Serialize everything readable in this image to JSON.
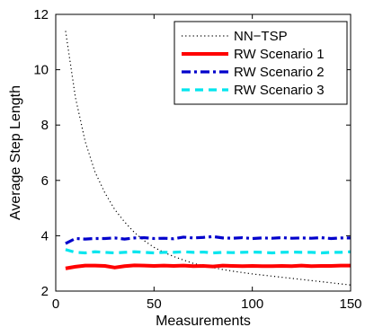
{
  "chart_data": {
    "type": "line",
    "title": "",
    "xlabel": "Measurements",
    "ylabel": "Average Step Length",
    "xlim": [
      0,
      150
    ],
    "ylim": [
      2,
      12
    ],
    "xticks": [
      0,
      50,
      100,
      150
    ],
    "yticks": [
      2,
      4,
      6,
      8,
      10,
      12
    ],
    "grid": false,
    "legend_position": "top-right",
    "series": [
      {
        "name": "NN−TSP",
        "style": "dotted",
        "color": "#000000",
        "x": [
          5,
          10,
          15,
          20,
          25,
          30,
          35,
          40,
          45,
          50,
          55,
          60,
          65,
          70,
          75,
          80,
          85,
          90,
          95,
          100,
          105,
          110,
          115,
          120,
          125,
          130,
          135,
          140,
          145,
          150
        ],
        "y": [
          11.4,
          9.0,
          7.4,
          6.3,
          5.55,
          4.95,
          4.5,
          4.12,
          3.82,
          3.58,
          3.4,
          3.25,
          3.12,
          3.0,
          2.92,
          2.85,
          2.78,
          2.72,
          2.67,
          2.62,
          2.58,
          2.54,
          2.5,
          2.46,
          2.42,
          2.38,
          2.34,
          2.3,
          2.26,
          2.22
        ]
      },
      {
        "name": "RW Scenario 1",
        "style": "solid",
        "color": "#ff0000",
        "x": [
          5,
          10,
          15,
          20,
          25,
          30,
          35,
          40,
          45,
          50,
          55,
          60,
          65,
          70,
          75,
          80,
          85,
          90,
          95,
          100,
          105,
          110,
          115,
          120,
          125,
          130,
          135,
          140,
          145,
          150
        ],
        "y": [
          2.82,
          2.88,
          2.92,
          2.92,
          2.91,
          2.85,
          2.9,
          2.93,
          2.92,
          2.91,
          2.92,
          2.91,
          2.92,
          2.9,
          2.91,
          2.89,
          2.92,
          2.91,
          2.9,
          2.91,
          2.9,
          2.9,
          2.91,
          2.9,
          2.92,
          2.9,
          2.91,
          2.91,
          2.92,
          2.92
        ]
      },
      {
        "name": "RW Scenario 2",
        "style": "dashdot",
        "color": "#0000cc",
        "x": [
          5,
          10,
          15,
          20,
          25,
          30,
          35,
          40,
          45,
          50,
          55,
          60,
          65,
          70,
          75,
          80,
          85,
          90,
          95,
          100,
          105,
          110,
          115,
          120,
          125,
          130,
          135,
          140,
          145,
          150
        ],
        "y": [
          3.72,
          3.9,
          3.88,
          3.9,
          3.9,
          3.92,
          3.88,
          3.92,
          3.93,
          3.9,
          3.91,
          3.89,
          3.95,
          3.92,
          3.94,
          3.97,
          3.92,
          3.91,
          3.93,
          3.9,
          3.92,
          3.91,
          3.93,
          3.91,
          3.92,
          3.91,
          3.93,
          3.9,
          3.92,
          3.92
        ]
      },
      {
        "name": "RW Scenario 3",
        "style": "dashed",
        "color": "#00e5ee",
        "x": [
          5,
          10,
          15,
          20,
          25,
          30,
          35,
          40,
          45,
          50,
          55,
          60,
          65,
          70,
          75,
          80,
          85,
          90,
          95,
          100,
          105,
          110,
          115,
          120,
          125,
          130,
          135,
          140,
          145,
          150
        ],
        "y": [
          3.5,
          3.4,
          3.38,
          3.42,
          3.4,
          3.38,
          3.4,
          3.42,
          3.4,
          3.38,
          3.4,
          3.4,
          3.42,
          3.4,
          3.41,
          3.38,
          3.4,
          3.39,
          3.4,
          3.41,
          3.4,
          3.38,
          3.4,
          3.41,
          3.4,
          3.4,
          3.38,
          3.4,
          3.4,
          3.42
        ]
      }
    ]
  }
}
